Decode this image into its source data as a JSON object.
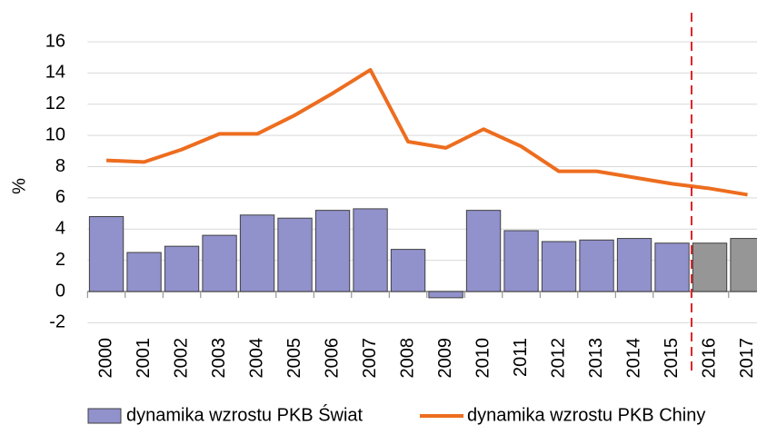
{
  "chart_data": {
    "type": "bar_line",
    "y_label": "%",
    "categories": [
      "2000",
      "2001",
      "2002",
      "2003",
      "2004",
      "2005",
      "2006",
      "2007",
      "2008",
      "2009",
      "2010",
      "2011",
      "2012",
      "2013",
      "2014",
      "2015",
      "2016",
      "2017"
    ],
    "series": [
      {
        "name": "dynamika wzrostu PKB Świat",
        "type": "bar",
        "color": "#9191cc",
        "colors": [
          "#9191cc",
          "#9191cc",
          "#9191cc",
          "#9191cc",
          "#9191cc",
          "#9191cc",
          "#9191cc",
          "#9191cc",
          "#9191cc",
          "#9191cc",
          "#9191cc",
          "#9191cc",
          "#9191cc",
          "#9191cc",
          "#9191cc",
          "#9191cc",
          "#969696",
          "#969696"
        ],
        "values": [
          4.8,
          2.5,
          2.9,
          3.6,
          4.9,
          4.7,
          5.2,
          5.3,
          2.7,
          -0.4,
          5.2,
          3.9,
          3.2,
          3.3,
          3.4,
          3.1,
          3.1,
          3.4
        ]
      },
      {
        "name": "dynamika wzrostu PKB Chiny",
        "type": "line",
        "color": "#ed6d1f",
        "values": [
          8.4,
          8.3,
          9.1,
          10.1,
          10.1,
          11.3,
          12.7,
          14.2,
          9.6,
          9.2,
          10.4,
          9.3,
          7.7,
          7.7,
          7.3,
          6.9,
          6.6,
          6.2
        ]
      }
    ],
    "ylim": [
      -2,
      16
    ],
    "yticks": [
      -2,
      0,
      2,
      4,
      6,
      8,
      10,
      12,
      14,
      16
    ],
    "grid": true,
    "legend": "bottom"
  }
}
